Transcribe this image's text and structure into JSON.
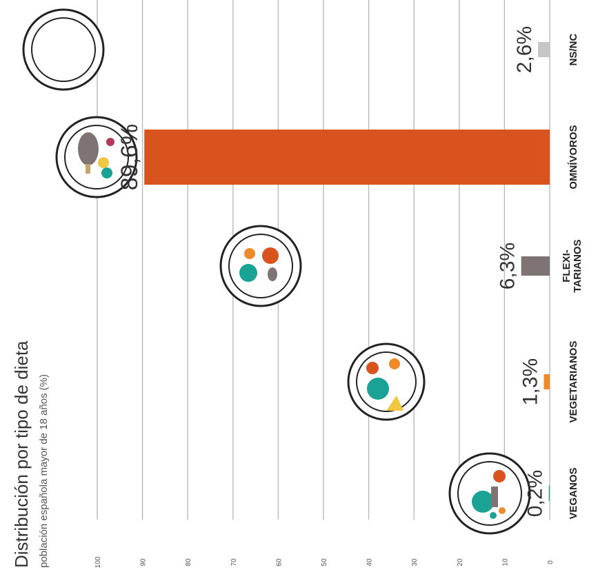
{
  "chart_data": {
    "type": "bar",
    "orientation": "horizontal",
    "title": "Distribución por tipo de dieta",
    "subtitle": "población española mayor de 18 años (%)",
    "xlim": [
      0,
      100
    ],
    "ticks": [
      "0",
      "10",
      "20",
      "30",
      "40",
      "50",
      "60",
      "70",
      "80",
      "90",
      "100"
    ],
    "categories": [
      "VEGANOS",
      "VEGETARIANOS",
      "FLEXI-TARIANOS",
      "OMNÍVOROS",
      "NS/NC"
    ],
    "category_lines": [
      [
        "VEGANOS"
      ],
      [
        "VEGETARIANOS"
      ],
      [
        "FLEXI-",
        "TARIANOS"
      ],
      [
        "OMNÍVOROS"
      ],
      [
        "NS/NC"
      ]
    ],
    "values": [
      0.2,
      1.3,
      6.3,
      89.6,
      2.6
    ],
    "value_labels": [
      "0,2%",
      "1,3%",
      "6,3%",
      "89,6%",
      "2,6%"
    ],
    "colors": [
      "#1aa394",
      "#ee8a2a",
      "#7f7474",
      "#d9531e",
      "#c6c6c6"
    ],
    "icons": [
      "vegan-plate-icon",
      "vegetarian-plate-icon",
      "flexitarian-plate-icon",
      "omnivore-plate-icon",
      "empty-plate-icon"
    ],
    "grid": true,
    "legend": "none"
  }
}
